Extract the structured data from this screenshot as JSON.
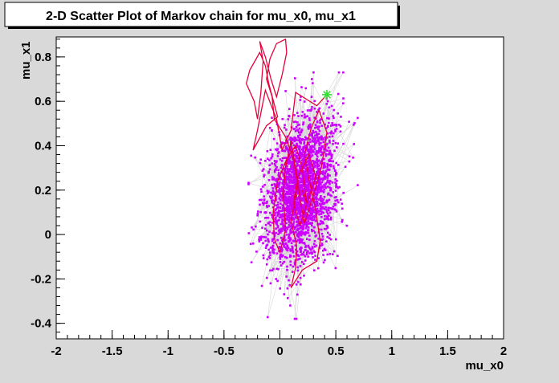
{
  "chart_data": {
    "type": "scatter",
    "title": "2-D Scatter Plot of Markov chain for mu_x0, mu_x1",
    "xlabel": "mu_x0",
    "ylabel": "mu_x1",
    "xlim": [
      -2,
      2
    ],
    "ylim": [
      -0.47,
      0.89
    ],
    "xticks": [
      -2,
      -1.5,
      -1,
      -0.5,
      0,
      0.5,
      1,
      1.5,
      2
    ],
    "yticks": [
      -0.4,
      -0.2,
      0,
      0.2,
      0.4,
      0.6,
      0.8
    ],
    "xtick_labels": [
      "-2",
      "-1.5",
      "-1",
      "-0.5",
      "0",
      "0.5",
      "1",
      "1.5",
      "2"
    ],
    "ytick_labels": [
      "-0.4",
      "-0.2",
      "0",
      "0.2",
      "0.4",
      "0.6",
      "0.8"
    ],
    "grid": false,
    "colors": {
      "frame_bg": "#d9d9d9",
      "plot_bg": "#ffffff",
      "points": "#cc00ff",
      "chain": "#b8b8b8",
      "burn_in": "#e8003c",
      "start_marker": "#33dd33"
    },
    "series": [
      {
        "role": "burn-in chain path",
        "style": "red polyline",
        "points": [
          [
            0.42,
            0.63
          ],
          [
            0.33,
            0.58
          ],
          [
            0.14,
            0.64
          ],
          [
            0.1,
            0.47
          ],
          [
            0.02,
            0.38
          ],
          [
            -0.03,
            0.52
          ],
          [
            -0.13,
            0.65
          ],
          [
            -0.2,
            0.47
          ],
          [
            -0.24,
            0.38
          ],
          [
            -0.12,
            0.49
          ],
          [
            -0.02,
            0.53
          ],
          [
            -0.1,
            0.68
          ],
          [
            -0.13,
            0.76
          ],
          [
            -0.18,
            0.82
          ],
          [
            -0.27,
            0.74
          ],
          [
            -0.3,
            0.68
          ],
          [
            -0.23,
            0.6
          ],
          [
            -0.2,
            0.52
          ],
          [
            -0.17,
            0.64
          ],
          [
            -0.15,
            0.78
          ],
          [
            -0.18,
            0.87
          ],
          [
            -0.13,
            0.8
          ],
          [
            -0.08,
            0.7
          ],
          [
            -0.03,
            0.62
          ],
          [
            0.02,
            0.72
          ],
          [
            0.06,
            0.82
          ],
          [
            0.05,
            0.88
          ],
          [
            -0.03,
            0.86
          ],
          [
            -0.09,
            0.79
          ],
          [
            -0.12,
            0.7
          ],
          [
            -0.07,
            0.62
          ],
          [
            -0.05,
            0.52
          ],
          [
            0.05,
            0.44
          ],
          [
            0.12,
            0.34
          ],
          [
            0.16,
            0.22
          ],
          [
            0.1,
            0.06
          ],
          [
            0.15,
            -0.05
          ],
          [
            0.14,
            -0.15
          ],
          [
            0.1,
            -0.24
          ],
          [
            0.2,
            -0.16
          ],
          [
            0.33,
            -0.12
          ],
          [
            0.36,
            -0.03
          ],
          [
            0.32,
            0.11
          ],
          [
            0.26,
            0.25
          ],
          [
            0.22,
            0.36
          ],
          [
            0.28,
            0.48
          ],
          [
            0.35,
            0.56
          ],
          [
            0.42,
            0.46
          ],
          [
            0.37,
            0.3
          ],
          [
            0.3,
            0.18
          ],
          [
            0.22,
            0.05
          ],
          [
            0.18,
            0.16
          ],
          [
            0.14,
            0.3
          ],
          [
            0.1,
            0.42
          ],
          [
            0.05,
            0.3
          ],
          [
            0.03,
            0.18
          ],
          [
            0.05,
            0.02
          ],
          [
            0.0,
            -0.08
          ],
          [
            -0.05,
            -0.02
          ],
          [
            -0.06,
            0.1
          ],
          [
            -0.02,
            0.24
          ],
          [
            0.06,
            0.34
          ],
          [
            0.14,
            0.4
          ],
          [
            0.2,
            0.3
          ],
          [
            0.24,
            0.14
          ],
          [
            0.18,
            0.04
          ],
          [
            0.12,
            0.14
          ],
          [
            0.16,
            0.26
          ],
          [
            0.26,
            0.36
          ],
          [
            0.32,
            0.26
          ],
          [
            0.24,
            0.14
          ],
          [
            0.2,
            0.2
          ]
        ]
      },
      {
        "role": "starting point",
        "style": "green star",
        "points": [
          [
            0.42,
            0.63
          ]
        ]
      },
      {
        "role": "chain samples",
        "style": "magenta points joined by gray lines",
        "distribution": {
          "center": [
            0.19,
            0.2
          ],
          "sd": [
            0.16,
            0.18
          ],
          "correlation": 0.3,
          "count": 2400,
          "x_extent": [
            -0.28,
            0.8
          ],
          "y_extent": [
            -0.38,
            0.73
          ]
        }
      }
    ]
  }
}
